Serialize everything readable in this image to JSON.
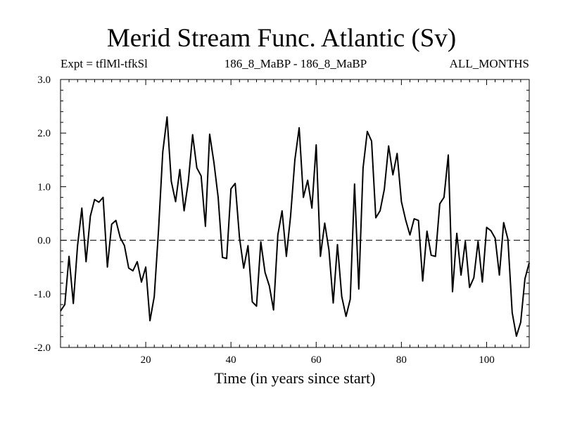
{
  "chart_data": {
    "type": "line",
    "title": "Merid Stream Func. Atlantic (Sv)",
    "subtitle_left": "Expt = tflMl-tfkSl",
    "subtitle_center": "186_8_MaBP - 186_8_MaBP",
    "subtitle_right": "ALL_MONTHS",
    "xlabel": "Time (in years since start)",
    "ylabel": "",
    "xlim": [
      0,
      110
    ],
    "ylim": [
      -2.0,
      3.0
    ],
    "x_ticks": [
      20,
      40,
      60,
      80,
      100
    ],
    "x_tick_labels": [
      "20",
      "40",
      "60",
      "80",
      "100"
    ],
    "y_ticks": [
      -2.0,
      -1.0,
      0.0,
      1.0,
      2.0,
      3.0
    ],
    "y_tick_labels": [
      "-2.0",
      "-1.0",
      "0.0",
      "1.0",
      "2.0",
      "3.0"
    ],
    "zero_line": "dashed",
    "series": [
      {
        "name": "Merid Stream Func",
        "x": [
          0,
          1,
          2,
          3,
          4,
          5,
          6,
          7,
          8,
          9,
          10,
          11,
          12,
          13,
          14,
          15,
          16,
          17,
          18,
          19,
          20,
          21,
          22,
          23,
          24,
          25,
          26,
          27,
          28,
          29,
          30,
          31,
          32,
          33,
          34,
          35,
          36,
          37,
          38,
          39,
          40,
          41,
          42,
          43,
          44,
          45,
          46,
          47,
          48,
          49,
          50,
          51,
          52,
          53,
          54,
          55,
          56,
          57,
          58,
          59,
          60,
          61,
          62,
          63,
          64,
          65,
          66,
          67,
          68,
          69,
          70,
          71,
          72,
          73,
          74,
          75,
          76,
          77,
          78,
          79,
          80,
          81,
          82,
          83,
          84,
          85,
          86,
          87,
          88,
          89,
          90,
          91,
          92,
          93,
          94,
          95,
          96,
          97,
          98,
          99,
          100,
          101,
          102,
          103,
          104,
          105,
          106,
          107,
          108,
          109,
          110
        ],
        "values": [
          -1.32,
          -1.2,
          -0.3,
          -1.18,
          -0.1,
          0.6,
          -0.4,
          0.45,
          0.76,
          0.71,
          0.8,
          -0.5,
          0.3,
          0.37,
          0.05,
          -0.1,
          -0.52,
          -0.57,
          -0.4,
          -0.78,
          -0.5,
          -1.5,
          -1.05,
          0.2,
          1.65,
          2.3,
          1.1,
          0.72,
          1.32,
          0.55,
          1.1,
          1.97,
          1.35,
          1.2,
          0.26,
          1.98,
          1.45,
          0.8,
          -0.32,
          -0.34,
          0.96,
          1.06,
          0.05,
          -0.52,
          -0.1,
          -1.15,
          -1.23,
          -0.03,
          -0.6,
          -0.85,
          -1.3,
          0.1,
          0.55,
          -0.3,
          0.45,
          1.5,
          2.1,
          0.8,
          1.12,
          0.6,
          1.78,
          -0.3,
          0.32,
          -0.18,
          -1.17,
          -0.08,
          -1.05,
          -1.42,
          -1.1,
          1.05,
          -0.91,
          1.35,
          2.03,
          1.85,
          0.42,
          0.55,
          0.95,
          1.76,
          1.22,
          1.62,
          0.72,
          0.38,
          0.1,
          0.4,
          0.37,
          -0.76,
          0.17,
          -0.28,
          -0.3,
          0.68,
          0.8,
          1.59,
          -0.96,
          0.13,
          -0.65,
          -0.02,
          -0.88,
          -0.7,
          -0.02,
          -0.78,
          0.24,
          0.18,
          0.04,
          -0.65,
          0.33,
          0.02,
          -1.35,
          -1.79,
          -1.53,
          -0.72,
          -0.42
        ]
      }
    ]
  }
}
